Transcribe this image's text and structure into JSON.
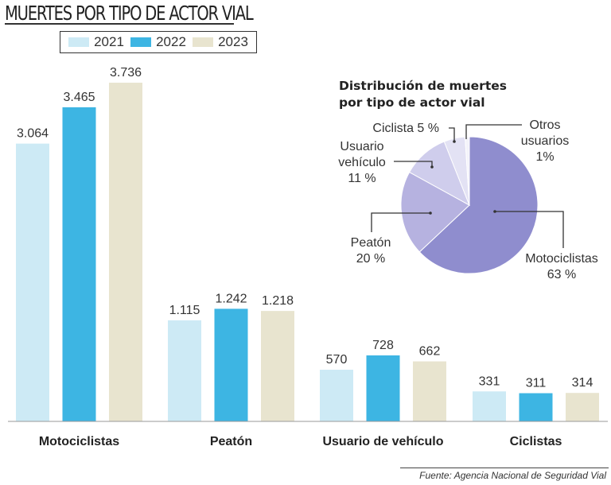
{
  "chart_data": [
    {
      "type": "bar",
      "title": "MUERTES POR TIPO DE ACTOR VIAL",
      "categories": [
        "Motociclistas",
        "Peatón",
        "Usuario de vehículo",
        "Ciclistas"
      ],
      "series": [
        {
          "name": "2021",
          "color": "#cdeaf5",
          "values": [
            3064,
            1115,
            570,
            331
          ],
          "labels": [
            "3.064",
            "1.115",
            "570",
            "331"
          ]
        },
        {
          "name": "2022",
          "color": "#3db5e3",
          "values": [
            3465,
            1242,
            728,
            311
          ],
          "labels": [
            "3.465",
            "1.242",
            "728",
            "311"
          ]
        },
        {
          "name": "2023",
          "color": "#e8e4cf",
          "values": [
            3736,
            1218,
            662,
            314
          ],
          "labels": [
            "3.736",
            "1.218",
            "662",
            "314"
          ]
        }
      ],
      "legend": "top",
      "grid": false,
      "ylim": [
        0,
        3736
      ]
    },
    {
      "type": "pie",
      "title_lines": [
        "Distribución de muertes",
        "por tipo de actor vial"
      ],
      "slices": [
        {
          "label_lines": [
            "Motociclistas",
            "63 %"
          ],
          "value": 63,
          "color": "#8f8dce"
        },
        {
          "label_lines": [
            "Peatón",
            "20 %"
          ],
          "value": 20,
          "color": "#b6b2e0"
        },
        {
          "label_lines": [
            "Usuario",
            "vehículo",
            "11 %"
          ],
          "value": 11,
          "color": "#cfcdec"
        },
        {
          "label_lines": [
            "Ciclista 5 %"
          ],
          "value": 5,
          "color": "#e3e2f4"
        },
        {
          "label_lines": [
            "Otros",
            "usuarios",
            "1%"
          ],
          "value": 1,
          "color": "#f3f3fa"
        }
      ]
    }
  ],
  "source": "Fuente: Agencia Nacional de Seguridad Vial"
}
